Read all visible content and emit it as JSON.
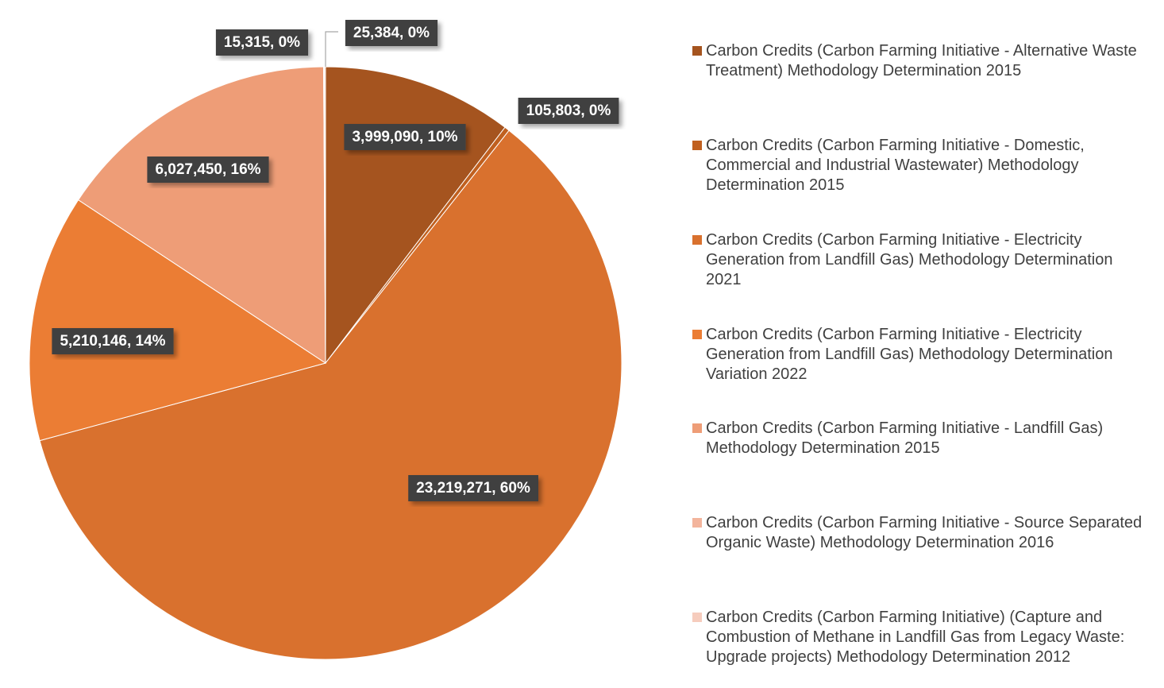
{
  "chart_data": {
    "type": "pie",
    "title": "",
    "slices": [
      {
        "name": "Carbon Credits (Carbon Farming Initiative - Alternative Waste Treatment) Methodology Determination 2015",
        "value": 3999090,
        "label": "3,999,090, 10%",
        "color": "#A5541F"
      },
      {
        "name": "Carbon Credits (Carbon Farming Initiative - Domestic, Commercial and Industrial Wastewater) Methodology Determination 2015",
        "value": 105803,
        "label": "105,803, 0%",
        "color": "#C0601F"
      },
      {
        "name": "Carbon Credits (Carbon Farming Initiative - Electricity Generation from Landfill Gas) Methodology Determination 2021",
        "value": 23219271,
        "label": "23,219,271, 60%",
        "color": "#D9712E"
      },
      {
        "name": "Carbon Credits (Carbon Farming Initiative - Electricity Generation from Landfill Gas) Methodology Determination Variation 2022",
        "value": 5210146,
        "label": "5,210,146, 14%",
        "color": "#EB7D34"
      },
      {
        "name": "Carbon Credits (Carbon Farming Initiative - Landfill Gas) Methodology Determination 2015",
        "value": 6027450,
        "label": "6,027,450, 16%",
        "color": "#EE9D77"
      },
      {
        "name": "Carbon Credits (Carbon Farming Initiative - Source Separated Organic Waste) Methodology Determination 2016",
        "value": 15315,
        "label": "15,315, 0%",
        "color": "#F3B49C"
      },
      {
        "name": "Carbon Credits (Carbon Farming Initiative) (Capture and Combustion of Methane in Landfill Gas from Legacy Waste: Upgrade projects) Methodology Determination 2012",
        "value": 25384,
        "label": "25,384, 0%",
        "color": "#F6CCBD"
      }
    ],
    "legend_position": "right",
    "label_box_color": "#404040"
  }
}
